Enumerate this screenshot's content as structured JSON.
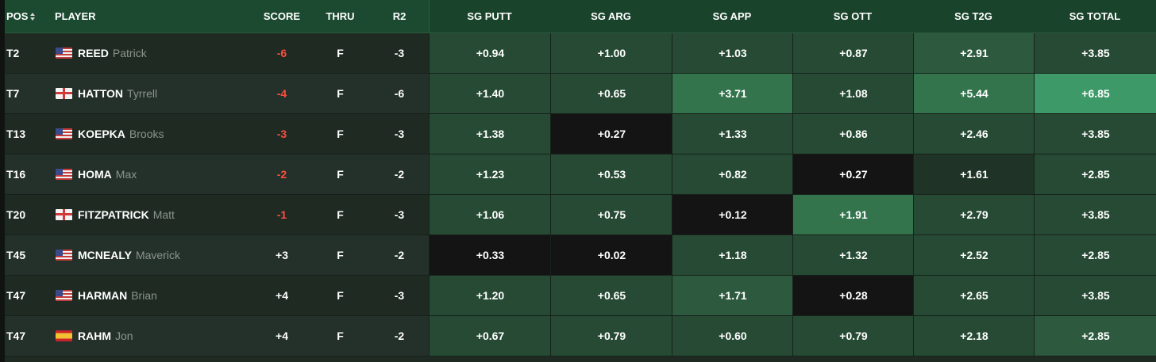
{
  "header": {
    "pos": "POS",
    "player": "PLAYER",
    "score": "SCORE",
    "thru": "THRU",
    "r2": "R2",
    "sg_putt": "SG PUTT",
    "sg_arg": "SG ARG",
    "sg_app": "SG APP",
    "sg_ott": "SG OTT",
    "sg_t2g": "SG T2G",
    "sg_total": "SG TOTAL"
  },
  "colors": {
    "negative_score": "#ff4d3d",
    "header_bg": "#1b4a30",
    "sg_black": "#141414",
    "sg_dark": "#1f3326",
    "sg_base": "#264a34",
    "sg_mid": "#2d5a3f",
    "sg_light": "#33744d",
    "sg_bright": "#3d9a68"
  },
  "rows": [
    {
      "pos": "T2",
      "flag": "us-flag-icon",
      "last": "REED",
      "first": "Patrick",
      "score": "-6",
      "thru": "F",
      "r2": "-3",
      "sg": [
        "+0.94",
        "+1.00",
        "+1.03",
        "+0.87",
        "+2.91",
        "+3.85"
      ],
      "tone": [
        "base",
        "base",
        "base",
        "base",
        "mid",
        "base"
      ]
    },
    {
      "pos": "T7",
      "flag": "england-flag-icon",
      "last": "HATTON",
      "first": "Tyrrell",
      "score": "-4",
      "thru": "F",
      "r2": "-6",
      "sg": [
        "+1.40",
        "+0.65",
        "+3.71",
        "+1.08",
        "+5.44",
        "+6.85"
      ],
      "tone": [
        "base",
        "base",
        "light",
        "base",
        "light",
        "bright"
      ]
    },
    {
      "pos": "T13",
      "flag": "us-flag-icon",
      "last": "KOEPKA",
      "first": "Brooks",
      "score": "-3",
      "thru": "F",
      "r2": "-3",
      "sg": [
        "+1.38",
        "+0.27",
        "+1.33",
        "+0.86",
        "+2.46",
        "+3.85"
      ],
      "tone": [
        "base",
        "black",
        "base",
        "base",
        "base",
        "base"
      ]
    },
    {
      "pos": "T16",
      "flag": "us-flag-icon",
      "last": "HOMA",
      "first": "Max",
      "score": "-2",
      "thru": "F",
      "r2": "-2",
      "sg": [
        "+1.23",
        "+0.53",
        "+0.82",
        "+0.27",
        "+1.61",
        "+2.85"
      ],
      "tone": [
        "base",
        "base",
        "base",
        "black",
        "dark",
        "base"
      ]
    },
    {
      "pos": "T20",
      "flag": "england-flag-icon",
      "last": "FITZPATRICK",
      "first": "Matt",
      "score": "-1",
      "thru": "F",
      "r2": "-3",
      "sg": [
        "+1.06",
        "+0.75",
        "+0.12",
        "+1.91",
        "+2.79",
        "+3.85"
      ],
      "tone": [
        "base",
        "base",
        "black",
        "light",
        "base",
        "base"
      ]
    },
    {
      "pos": "T45",
      "flag": "us-flag-icon",
      "last": "MCNEALY",
      "first": "Maverick",
      "score": "+3",
      "thru": "F",
      "r2": "-2",
      "sg": [
        "+0.33",
        "+0.02",
        "+1.18",
        "+1.32",
        "+2.52",
        "+2.85"
      ],
      "tone": [
        "black",
        "black",
        "base",
        "base",
        "base",
        "base"
      ]
    },
    {
      "pos": "T47",
      "flag": "us-flag-icon",
      "last": "HARMAN",
      "first": "Brian",
      "score": "+4",
      "thru": "F",
      "r2": "-3",
      "sg": [
        "+1.20",
        "+0.65",
        "+1.71",
        "+0.28",
        "+2.65",
        "+3.85"
      ],
      "tone": [
        "base",
        "base",
        "mid",
        "black",
        "base",
        "base"
      ]
    },
    {
      "pos": "T47",
      "flag": "spain-flag-icon",
      "last": "RAHM",
      "first": "Jon",
      "score": "+4",
      "thru": "F",
      "r2": "-2",
      "sg": [
        "+0.67",
        "+0.79",
        "+0.60",
        "+0.79",
        "+2.18",
        "+2.85"
      ],
      "tone": [
        "base",
        "base",
        "base",
        "base",
        "base",
        "mid"
      ]
    }
  ]
}
